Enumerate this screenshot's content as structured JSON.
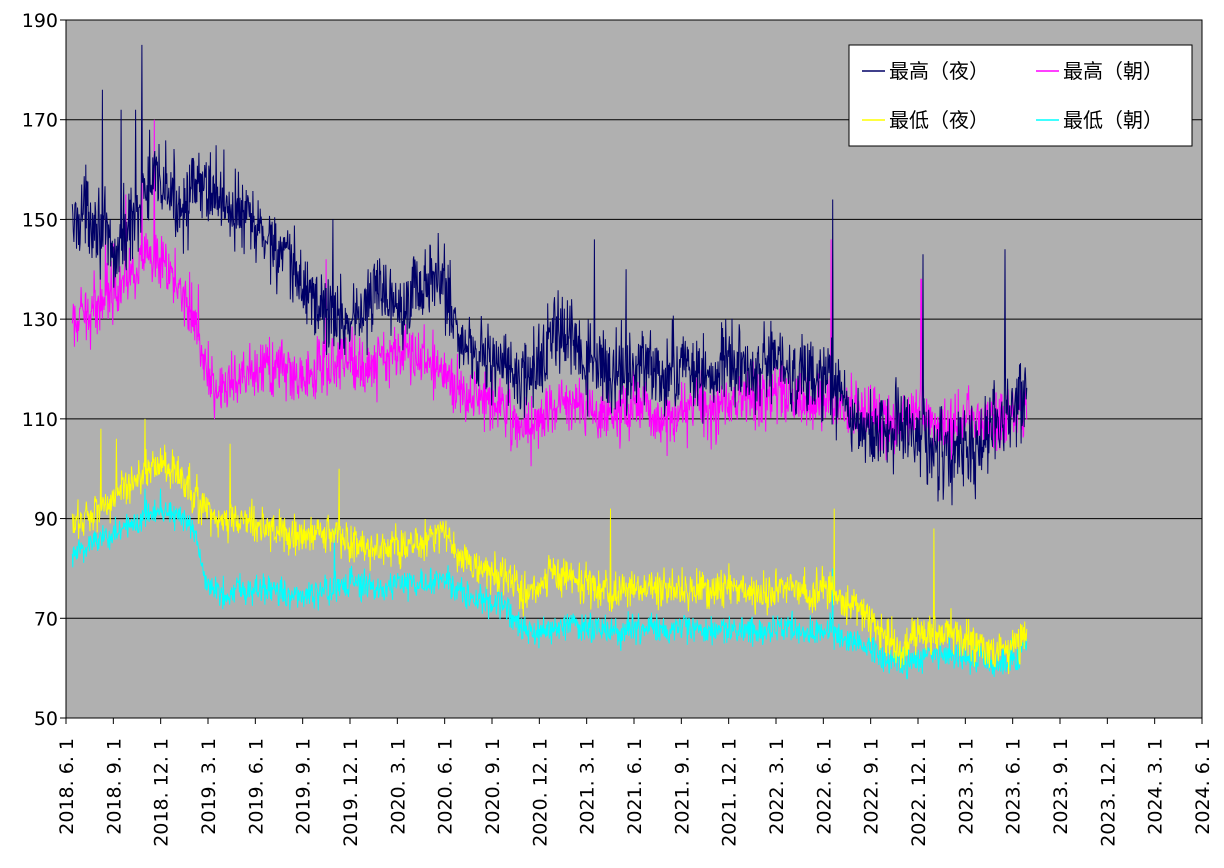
{
  "chart_data": {
    "type": "line",
    "title": "",
    "xlabel": "",
    "ylabel": "",
    "ylim": [
      50,
      190
    ],
    "yticks": [
      "190",
      "170",
      "150",
      "130",
      "110",
      "90",
      "70",
      "50"
    ],
    "xticks": [
      "2018. 6. 1",
      "2018. 9. 1",
      "2018. 12. 1",
      "2019. 3. 1",
      "2019. 6. 1",
      "2019. 9. 1",
      "2019. 12. 1",
      "2020. 3. 1",
      "2020. 6. 1",
      "2020. 9. 1",
      "2020. 12. 1",
      "2021. 3. 1",
      "2021. 6. 1",
      "2021. 9. 1",
      "2021. 12. 1",
      "2022. 3. 1",
      "2022. 6. 1",
      "2022. 9. 1",
      "2022. 12. 1",
      "2023. 3. 1",
      "2023. 6. 1",
      "2023. 9. 1",
      "2023. 12. 1",
      "2024. 3. 1",
      "2024. 6. 1"
    ],
    "grid": true,
    "legend_position": "top-right",
    "x_unit": "months since 2018-06",
    "series": [
      {
        "name": "最高（夜）",
        "color": "#000066",
        "trend": [
          [
            0.4,
            148
          ],
          [
            1,
            152
          ],
          [
            2,
            150
          ],
          [
            3,
            142
          ],
          [
            5,
            155
          ],
          [
            6,
            158
          ],
          [
            7,
            153
          ],
          [
            9,
            157
          ],
          [
            10,
            154
          ],
          [
            11,
            151
          ],
          [
            12,
            148
          ],
          [
            13,
            146
          ],
          [
            14,
            141
          ],
          [
            15,
            137
          ],
          [
            16,
            133
          ],
          [
            17,
            130
          ],
          [
            18,
            130
          ],
          [
            19,
            132
          ],
          [
            20,
            137
          ],
          [
            21,
            133
          ],
          [
            22,
            136
          ],
          [
            23,
            137
          ],
          [
            24,
            138
          ],
          [
            25,
            125
          ],
          [
            26,
            124
          ],
          [
            27,
            122
          ],
          [
            28,
            120
          ],
          [
            29,
            117
          ],
          [
            30,
            121
          ],
          [
            31,
            128
          ],
          [
            32,
            125
          ],
          [
            33,
            121
          ],
          [
            34,
            120
          ],
          [
            35,
            119
          ],
          [
            36,
            121
          ],
          [
            37,
            120
          ],
          [
            38,
            118
          ],
          [
            39,
            121
          ],
          [
            40,
            120
          ],
          [
            41,
            118
          ],
          [
            42,
            121
          ],
          [
            43,
            120
          ],
          [
            44,
            119
          ],
          [
            45,
            122
          ],
          [
            46,
            119
          ],
          [
            47,
            118
          ],
          [
            48,
            117
          ],
          [
            49,
            116
          ],
          [
            50,
            109
          ],
          [
            51,
            107
          ],
          [
            52,
            108
          ],
          [
            53,
            109
          ],
          [
            54,
            109
          ],
          [
            55,
            104
          ],
          [
            56,
            103
          ],
          [
            57,
            104
          ],
          [
            58,
            105
          ],
          [
            59,
            108
          ],
          [
            60,
            112
          ],
          [
            60.9,
            115
          ]
        ],
        "amplitude": 12,
        "peaks": [
          [
            2.3,
            176
          ],
          [
            3.5,
            172
          ],
          [
            4.4,
            172
          ],
          [
            4.8,
            185
          ],
          [
            5.3,
            168
          ],
          [
            8.7,
            156
          ],
          [
            16.9,
            150
          ],
          [
            33.5,
            146
          ],
          [
            35.5,
            140
          ],
          [
            48.6,
            154
          ],
          [
            54.3,
            143
          ],
          [
            56,
            110
          ],
          [
            59.5,
            144
          ]
        ]
      },
      {
        "name": "最高（朝）",
        "color": "#ff00ff",
        "trend": [
          [
            0.4,
            128
          ],
          [
            1,
            130
          ],
          [
            2,
            133
          ],
          [
            3,
            137
          ],
          [
            5,
            142
          ],
          [
            6,
            140
          ],
          [
            7,
            138
          ],
          [
            8,
            132
          ],
          [
            9,
            118
          ],
          [
            10,
            116
          ],
          [
            11,
            117
          ],
          [
            12,
            119
          ],
          [
            13,
            121
          ],
          [
            14,
            119
          ],
          [
            15,
            118
          ],
          [
            16,
            120
          ],
          [
            17,
            122
          ],
          [
            18,
            122
          ],
          [
            19,
            120
          ],
          [
            20,
            122
          ],
          [
            21,
            124
          ],
          [
            22,
            123
          ],
          [
            23,
            121
          ],
          [
            24,
            119
          ],
          [
            25,
            116
          ],
          [
            26,
            115
          ],
          [
            27,
            114
          ],
          [
            28,
            112
          ],
          [
            29,
            108
          ],
          [
            30,
            110
          ],
          [
            31,
            113
          ],
          [
            32,
            113
          ],
          [
            33,
            112
          ],
          [
            34,
            110
          ],
          [
            35,
            111
          ],
          [
            36,
            113
          ],
          [
            37,
            111
          ],
          [
            38,
            110
          ],
          [
            39,
            112
          ],
          [
            40,
            113
          ],
          [
            41,
            112
          ],
          [
            42,
            113
          ],
          [
            43,
            115
          ],
          [
            44,
            114
          ],
          [
            45,
            115
          ],
          [
            46,
            114
          ],
          [
            47,
            113
          ],
          [
            48,
            114
          ],
          [
            49,
            112
          ],
          [
            50,
            113
          ],
          [
            51,
            111
          ],
          [
            52,
            110
          ],
          [
            53,
            110
          ],
          [
            54,
            111
          ],
          [
            55,
            108
          ],
          [
            56,
            109
          ],
          [
            57,
            110
          ],
          [
            58,
            110
          ],
          [
            59,
            109
          ],
          [
            60,
            112
          ],
          [
            60.9,
            114
          ]
        ],
        "amplitude": 9,
        "peaks": [
          [
            2.5,
            150
          ],
          [
            3.8,
            155
          ],
          [
            4.8,
            164
          ],
          [
            5.6,
            170
          ],
          [
            8.4,
            137
          ],
          [
            16.5,
            142
          ],
          [
            48.5,
            146
          ],
          [
            54.2,
            138
          ]
        ]
      },
      {
        "name": "最低（夜）",
        "color": "#ffff00",
        "trend": [
          [
            0.4,
            88
          ],
          [
            1,
            90
          ],
          [
            2,
            92
          ],
          [
            3,
            94
          ],
          [
            4,
            97
          ],
          [
            5,
            100
          ],
          [
            6,
            101
          ],
          [
            7,
            99
          ],
          [
            8,
            95
          ],
          [
            9,
            91
          ],
          [
            10,
            89
          ],
          [
            11,
            90
          ],
          [
            12,
            89
          ],
          [
            13,
            88
          ],
          [
            14,
            87
          ],
          [
            15,
            86
          ],
          [
            16,
            87
          ],
          [
            17,
            87
          ],
          [
            18,
            85
          ],
          [
            19,
            84
          ],
          [
            20,
            84
          ],
          [
            21,
            84
          ],
          [
            22,
            85
          ],
          [
            23,
            86
          ],
          [
            24,
            88
          ],
          [
            25,
            82
          ],
          [
            26,
            80
          ],
          [
            27,
            79
          ],
          [
            28,
            78
          ],
          [
            29,
            75
          ],
          [
            30,
            77
          ],
          [
            31,
            79
          ],
          [
            32,
            78
          ],
          [
            33,
            76
          ],
          [
            34,
            76
          ],
          [
            35,
            75
          ],
          [
            36,
            76
          ],
          [
            37,
            76
          ],
          [
            38,
            75
          ],
          [
            39,
            76
          ],
          [
            40,
            76
          ],
          [
            41,
            75
          ],
          [
            42,
            76
          ],
          [
            43,
            76
          ],
          [
            44,
            75
          ],
          [
            45,
            76
          ],
          [
            46,
            76
          ],
          [
            47,
            75
          ],
          [
            48,
            76
          ],
          [
            49,
            74
          ],
          [
            50,
            72
          ],
          [
            51,
            70
          ],
          [
            52,
            66
          ],
          [
            53,
            64
          ],
          [
            54,
            66
          ],
          [
            55,
            67
          ],
          [
            56,
            68
          ],
          [
            57,
            66
          ],
          [
            58,
            65
          ],
          [
            59,
            63
          ],
          [
            60,
            64
          ],
          [
            60.9,
            66
          ]
        ],
        "amplitude": 6,
        "peaks": [
          [
            2.2,
            108
          ],
          [
            3.2,
            106
          ],
          [
            5.0,
            110
          ],
          [
            10.4,
            105
          ],
          [
            17.3,
            100
          ],
          [
            34.5,
            92
          ],
          [
            48.7,
            92
          ],
          [
            55.0,
            88
          ]
        ]
      },
      {
        "name": "最低（朝）",
        "color": "#00ffff",
        "trend": [
          [
            0.4,
            82
          ],
          [
            1,
            84
          ],
          [
            2,
            86
          ],
          [
            3,
            87
          ],
          [
            4,
            88
          ],
          [
            5,
            91
          ],
          [
            6,
            92
          ],
          [
            7,
            91
          ],
          [
            8,
            88
          ],
          [
            9,
            76
          ],
          [
            10,
            75
          ],
          [
            11,
            76
          ],
          [
            12,
            76
          ],
          [
            13,
            76
          ],
          [
            14,
            75
          ],
          [
            15,
            74
          ],
          [
            16,
            75
          ],
          [
            17,
            76
          ],
          [
            18,
            77
          ],
          [
            19,
            76
          ],
          [
            20,
            76
          ],
          [
            21,
            77
          ],
          [
            22,
            77
          ],
          [
            23,
            77
          ],
          [
            24,
            78
          ],
          [
            25,
            75
          ],
          [
            26,
            74
          ],
          [
            27,
            73
          ],
          [
            28,
            72
          ],
          [
            29,
            67
          ],
          [
            30,
            67
          ],
          [
            31,
            68
          ],
          [
            32,
            69
          ],
          [
            33,
            68
          ],
          [
            34,
            67
          ],
          [
            35,
            67
          ],
          [
            36,
            68
          ],
          [
            37,
            68
          ],
          [
            38,
            67
          ],
          [
            39,
            68
          ],
          [
            40,
            68
          ],
          [
            41,
            67
          ],
          [
            42,
            68
          ],
          [
            43,
            68
          ],
          [
            44,
            67
          ],
          [
            45,
            68
          ],
          [
            46,
            68
          ],
          [
            47,
            67
          ],
          [
            48,
            68
          ],
          [
            49,
            67
          ],
          [
            50,
            65
          ],
          [
            51,
            64
          ],
          [
            52,
            62
          ],
          [
            53,
            61
          ],
          [
            54,
            62
          ],
          [
            55,
            63
          ],
          [
            56,
            63
          ],
          [
            57,
            62
          ],
          [
            58,
            62
          ],
          [
            59,
            60
          ],
          [
            60,
            62
          ],
          [
            60.9,
            64
          ]
        ],
        "amplitude": 4.5,
        "peaks": [
          [
            5.0,
            96
          ],
          [
            6.0,
            96
          ],
          [
            17.0,
            88
          ],
          [
            48.6,
            80
          ]
        ]
      }
    ]
  }
}
